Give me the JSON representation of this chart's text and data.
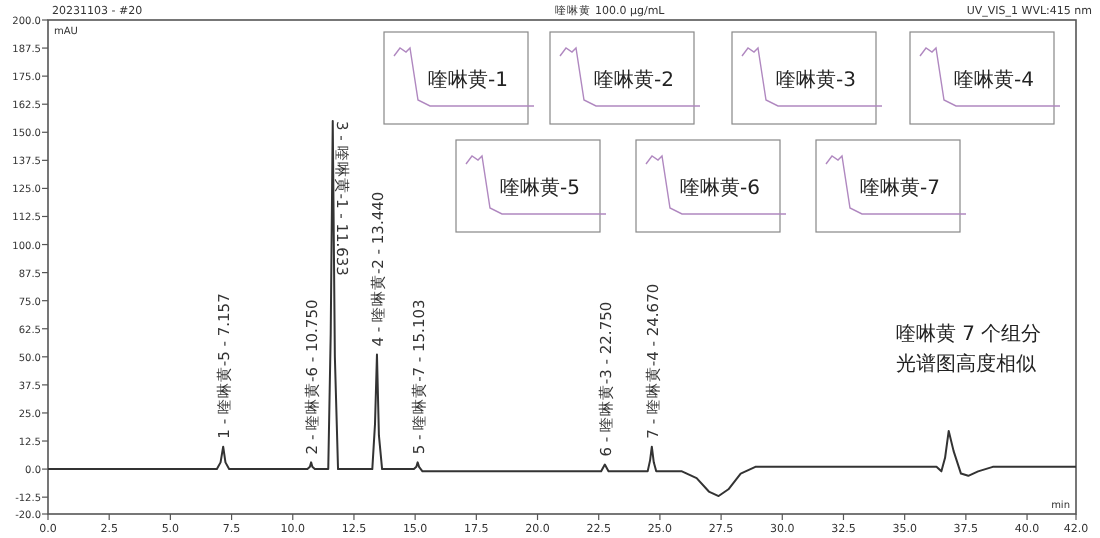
{
  "chart_data": {
    "type": "line",
    "title": "20231103 - #20",
    "subtitle": "喹啉黄 100.0 µg/mL",
    "xlabel": "min",
    "ylabel": "mAU",
    "grid": false,
    "marker": "none",
    "line_style": "solid",
    "xlim": [
      0,
      42
    ],
    "ylim": [
      -20,
      200
    ],
    "xticks": [
      {
        "value": 0,
        "label": "0.0"
      },
      {
        "value": 2.5,
        "label": "2.5"
      },
      {
        "value": 5,
        "label": "5.0"
      },
      {
        "value": 7.5,
        "label": "7.5"
      },
      {
        "value": 10,
        "label": "10.0"
      },
      {
        "value": 12.5,
        "label": "12.5"
      },
      {
        "value": 15,
        "label": "15.0"
      },
      {
        "value": 17.5,
        "label": "17.5"
      },
      {
        "value": 20,
        "label": "20.0"
      },
      {
        "value": 22.5,
        "label": "22.5"
      },
      {
        "value": 25,
        "label": "25.0"
      },
      {
        "value": 27.5,
        "label": "27.5"
      },
      {
        "value": 30,
        "label": "30.0"
      },
      {
        "value": 32.5,
        "label": "32.5"
      },
      {
        "value": 35,
        "label": "35.0"
      },
      {
        "value": 37.5,
        "label": "37.5"
      },
      {
        "value": 40,
        "label": "40.0"
      },
      {
        "value": 42,
        "label": "42.0"
      }
    ],
    "yticks": [
      {
        "value": -20,
        "label": "-20.0"
      },
      {
        "value": -12.5,
        "label": "-12.5"
      },
      {
        "value": 0,
        "label": "0.0"
      },
      {
        "value": 12.5,
        "label": "12.5"
      },
      {
        "value": 25,
        "label": "25.0"
      },
      {
        "value": 37.5,
        "label": "37.5"
      },
      {
        "value": 50,
        "label": "50.0"
      },
      {
        "value": 62.5,
        "label": "62.5"
      },
      {
        "value": 75,
        "label": "75.0"
      },
      {
        "value": 87.5,
        "label": "87.5"
      },
      {
        "value": 100,
        "label": "100.0"
      },
      {
        "value": 112.5,
        "label": "112.5"
      },
      {
        "value": 125,
        "label": "125.0"
      },
      {
        "value": 137.5,
        "label": "137.5"
      },
      {
        "value": 150,
        "label": "150.0"
      },
      {
        "value": 162.5,
        "label": "162.5"
      },
      {
        "value": 175,
        "label": "175.0"
      },
      {
        "value": 187.5,
        "label": "187.5"
      },
      {
        "value": 200,
        "label": "200.0"
      }
    ],
    "series": [
      {
        "color": "#333333",
        "x": [
          0,
          6.9,
          7.05,
          7.157,
          7.25,
          7.4,
          10.6,
          10.7,
          10.75,
          10.8,
          10.9,
          11.45,
          11.55,
          11.633,
          11.72,
          11.85,
          13.25,
          13.36,
          13.44,
          13.52,
          13.65,
          14.95,
          15.05,
          15.103,
          15.16,
          15.3,
          22.6,
          22.7,
          22.75,
          22.8,
          22.9,
          24.5,
          24.6,
          24.67,
          24.75,
          24.85,
          25.9,
          26.5,
          27.0,
          27.4,
          27.8,
          28.3,
          28.9,
          30,
          36.3,
          36.5,
          36.65,
          36.8,
          37.0,
          37.3,
          37.6,
          38.0,
          38.6,
          42
        ],
        "values": [
          0,
          0,
          3,
          10,
          3,
          0,
          0,
          1,
          3,
          1,
          0,
          0,
          60,
          155,
          50,
          0,
          0,
          20,
          51,
          15,
          0,
          0,
          1,
          3,
          1,
          -1,
          -1,
          1,
          2,
          1,
          -1,
          -1,
          4,
          10,
          3,
          -1,
          -1,
          -4,
          -10,
          -12,
          -9,
          -2,
          1,
          1,
          1,
          -1,
          5,
          17,
          8,
          -2,
          -3,
          -1,
          1,
          1
        ]
      }
    ],
    "annotations": [
      "UV_VIS_1 WVL:415 nm",
      "喹啉黄-1",
      "喹啉黄-2",
      "喹啉黄-3",
      "喹啉黄-4",
      "喹啉黄-5",
      "喹啉黄-6",
      "喹啉黄-7",
      "喹啉黄 7 个组分",
      "光谱图高度相似",
      {
        "text": "1 - 喹啉黄-5 - 7.157",
        "x": 7.157,
        "y": 10
      },
      {
        "text": "2 - 喹啉黄-6 - 10.750",
        "x": 10.75,
        "y": 3
      },
      {
        "text": "3 - 喹啉黄-1 - 11.633",
        "x": 11.633,
        "y": 155
      },
      {
        "text": "4 - 喹啉黄-2 - 13.440",
        "x": 13.44,
        "y": 51
      },
      {
        "text": "5 - 喹啉黄-7 - 15.103",
        "x": 15.103,
        "y": 3
      },
      {
        "text": "6 - 喹啉黄-3 - 22.750",
        "x": 22.75,
        "y": 2
      },
      {
        "text": "7 - 喹啉黄-4 - 24.670",
        "x": 24.67,
        "y": 10
      }
    ]
  }
}
